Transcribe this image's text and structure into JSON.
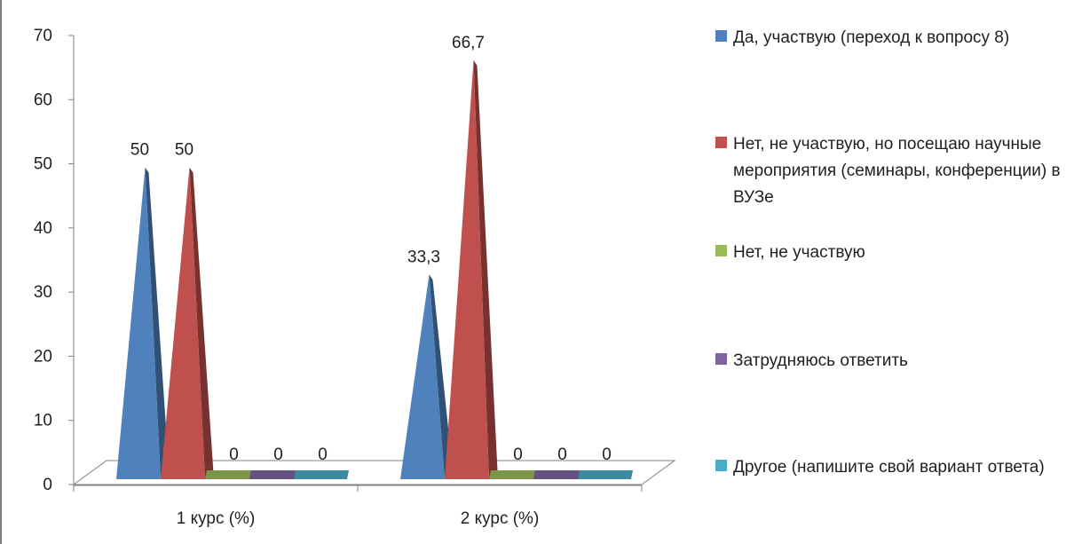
{
  "chart_data": {
    "type": "bar",
    "style": "3d-cone",
    "categories": [
      "1 курс (%)",
      "2 курс (%)"
    ],
    "series": [
      {
        "name": "Да, участвую (переход к вопросу 8)",
        "color": "#4f81bd",
        "values": [
          50,
          33.3
        ],
        "labels": [
          "50",
          "33,3"
        ]
      },
      {
        "name": "Нет, не участвую, но посещаю научные мероприятия (семинары, конференции) в ВУЗе",
        "color": "#c0504d",
        "values": [
          50,
          66.7
        ],
        "labels": [
          "50",
          "66,7"
        ]
      },
      {
        "name": "Нет, не участвую",
        "color": "#9bbb59",
        "values": [
          0,
          0
        ],
        "labels": [
          "0",
          "0"
        ]
      },
      {
        "name": "Затрудняюсь ответить",
        "color": "#8064a2",
        "values": [
          0,
          0
        ],
        "labels": [
          "0",
          "0"
        ]
      },
      {
        "name": "Другое (напишите свой вариант ответа)",
        "color": "#4bacc6",
        "values": [
          0,
          0
        ],
        "labels": [
          "0",
          "0"
        ]
      }
    ],
    "y_ticks": [
      0,
      10,
      20,
      30,
      40,
      50,
      60,
      70
    ],
    "ylim": [
      0,
      70
    ],
    "grid": false,
    "legend_position": "right"
  }
}
